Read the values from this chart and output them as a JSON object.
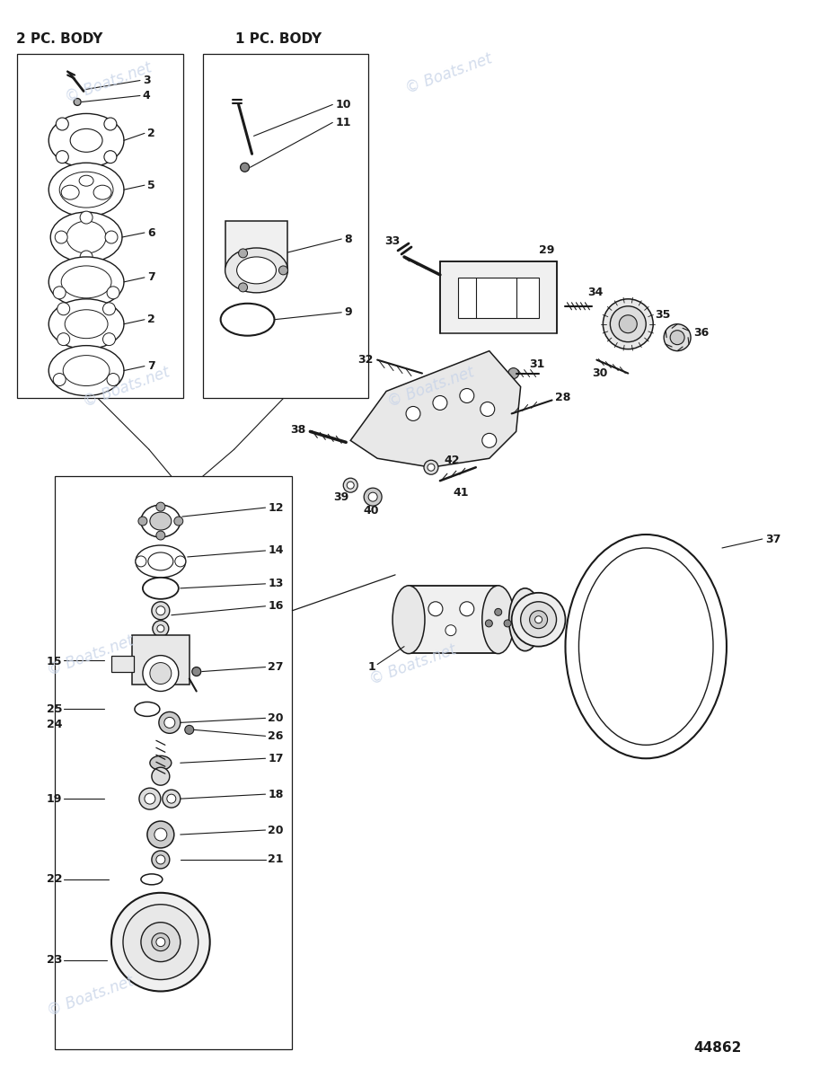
{
  "bg_color": "#ffffff",
  "watermark_color": "#c8d4e8",
  "watermark_text": "© Boats.net",
  "label_2pc": "2 PC. BODY",
  "label_1pc": "1 PC. BODY",
  "part_number": "44862",
  "line_color": "#1a1a1a",
  "part_color": "#1a1a1a"
}
